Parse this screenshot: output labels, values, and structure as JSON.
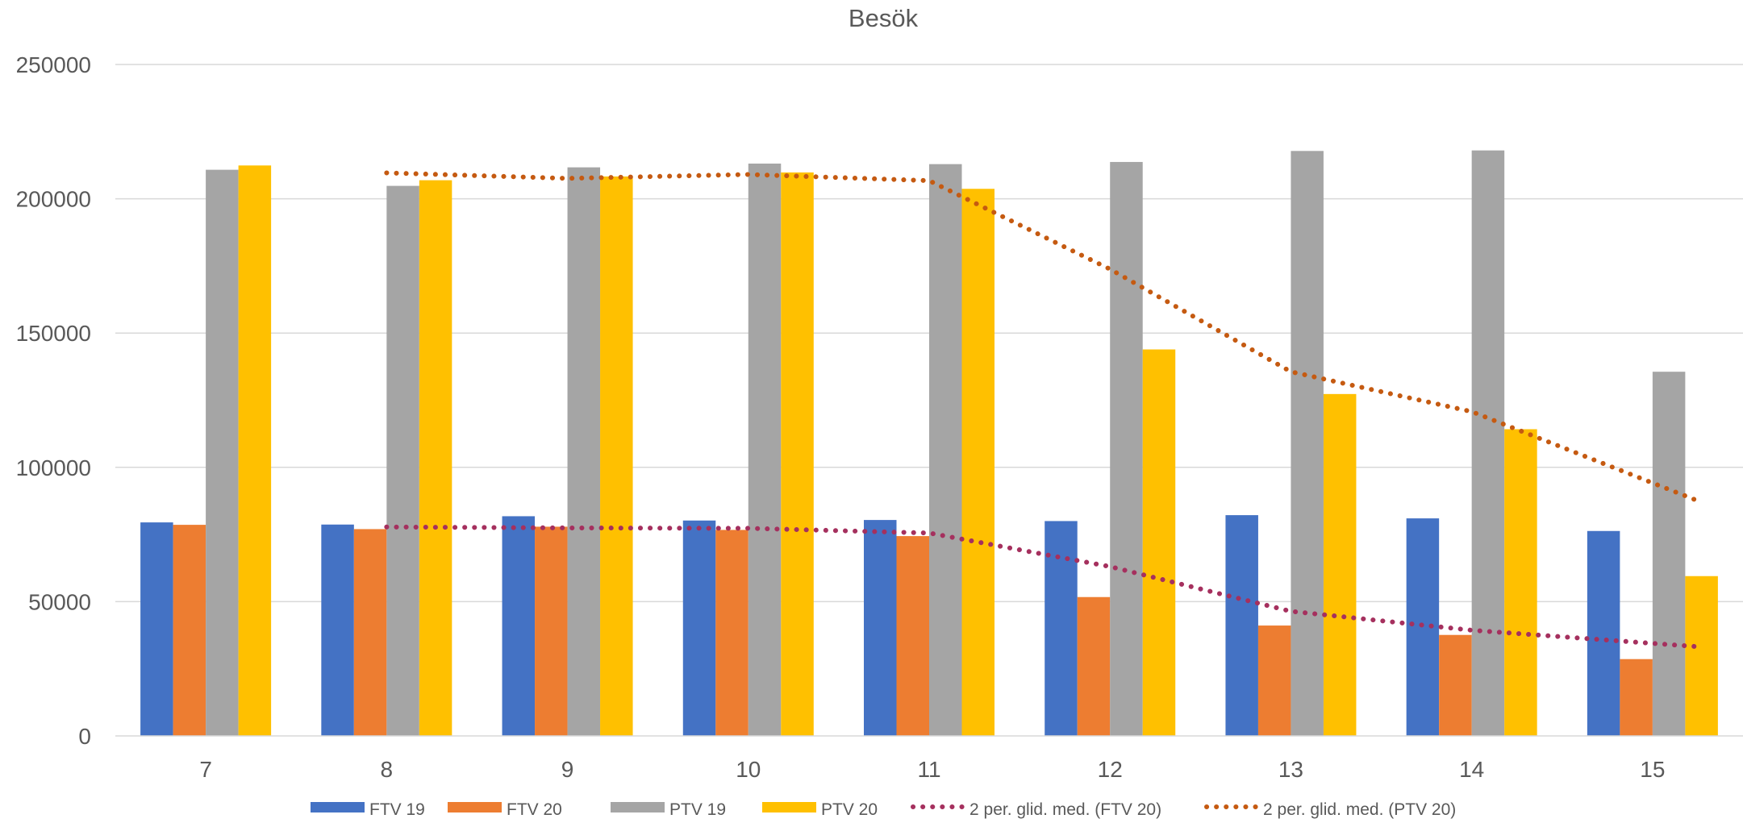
{
  "chart_data": {
    "type": "bar",
    "title": "Besök",
    "xlabel": "",
    "ylabel": "",
    "categories": [
      "7",
      "8",
      "9",
      "10",
      "11",
      "12",
      "13",
      "14",
      "15"
    ],
    "ylim": [
      0,
      250000
    ],
    "yticks": [
      "0",
      "50000",
      "100000",
      "150000",
      "200000",
      "250000"
    ],
    "grid": true,
    "legend_position": "bottom",
    "series": [
      {
        "name": "FTV 19",
        "color": "#4472C4",
        "values": [
          79500,
          78700,
          81800,
          80200,
          80400,
          80000,
          82200,
          81000,
          76300
        ]
      },
      {
        "name": "FTV 20",
        "color": "#ED7D31",
        "values": [
          78600,
          77000,
          77900,
          76700,
          74400,
          51700,
          41100,
          37600,
          28600
        ]
      },
      {
        "name": "PTV 19",
        "color": "#A5A5A5",
        "values": [
          210800,
          204800,
          211700,
          213100,
          212900,
          213700,
          217800,
          218000,
          135600
        ]
      },
      {
        "name": "PTV 20",
        "color": "#FFC000",
        "values": [
          212400,
          206900,
          208300,
          209800,
          203700,
          143900,
          127300,
          114200,
          59500
        ]
      }
    ],
    "trendlines": [
      {
        "name": "2 per. glid. med. (FTV 20)",
        "color": "#A5305E",
        "style": "dotted",
        "from_category": "8",
        "values": [
          77800,
          77450,
          77300,
          75550,
          63050,
          46400,
          39350,
          33100
        ]
      },
      {
        "name": "2 per. glid. med. (PTV 20)",
        "color": "#C55A11",
        "style": "dotted",
        "from_category": "8",
        "values": [
          209650,
          207600,
          209050,
          206750,
          173800,
          135600,
          120750,
          86850
        ]
      }
    ]
  }
}
